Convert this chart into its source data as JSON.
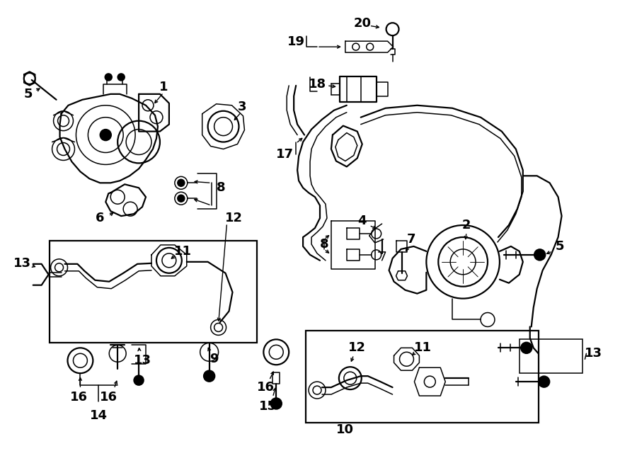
{
  "bg_color": "#ffffff",
  "line_color": "#000000",
  "fig_width": 9.0,
  "fig_height": 6.61,
  "lw": 1.1,
  "lw2": 1.6,
  "label_fs": 12,
  "label_fw": "bold"
}
